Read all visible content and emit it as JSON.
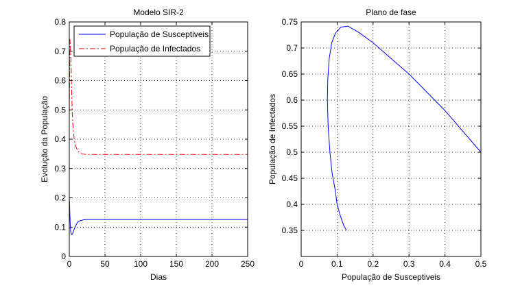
{
  "chart_data": [
    {
      "type": "line",
      "title": "Modelo SIR-2",
      "xlabel": "Dias",
      "ylabel": "Evolução da População",
      "xlim": [
        0,
        250
      ],
      "ylim": [
        0,
        0.8
      ],
      "xticks": [
        0,
        50,
        100,
        150,
        200,
        250
      ],
      "yticks": [
        0,
        0.1,
        0.2,
        0.3,
        0.4,
        0.5,
        0.6,
        0.7,
        0.8
      ],
      "grid": true,
      "legend_position": "top-left",
      "series": [
        {
          "name": "População de Susceptiveis",
          "color": "#0000ff",
          "style": "solid",
          "x": [
            0,
            0.5,
            1,
            1.5,
            2,
            3,
            4,
            5,
            6,
            8,
            10,
            12,
            15,
            20,
            25,
            30,
            50,
            100,
            150,
            200,
            250
          ],
          "y": [
            0.2,
            0.17,
            0.13,
            0.1,
            0.085,
            0.075,
            0.075,
            0.08,
            0.088,
            0.1,
            0.11,
            0.118,
            0.122,
            0.125,
            0.126,
            0.126,
            0.126,
            0.126,
            0.126,
            0.126,
            0.126
          ]
        },
        {
          "name": "População de Infectados",
          "color": "#ff0000",
          "style": "dashdot",
          "x": [
            0,
            1,
            2,
            3,
            4,
            5,
            6,
            7,
            8,
            10,
            12,
            15,
            20,
            25,
            30,
            50,
            100,
            150,
            200,
            250
          ],
          "y": [
            0.5,
            0.74,
            0.7,
            0.6,
            0.5,
            0.45,
            0.42,
            0.4,
            0.385,
            0.37,
            0.36,
            0.352,
            0.349,
            0.348,
            0.348,
            0.348,
            0.348,
            0.348,
            0.348,
            0.348
          ]
        }
      ]
    },
    {
      "type": "line",
      "title": "Plano de fase",
      "xlabel": "População de Susceptiveis",
      "ylabel": "População de Infectados",
      "xlim": [
        0,
        0.5
      ],
      "ylim": [
        0.3,
        0.75
      ],
      "xticks": [
        0,
        0.1,
        0.2,
        0.3,
        0.4,
        0.5
      ],
      "yticks": [
        0.35,
        0.4,
        0.45,
        0.5,
        0.55,
        0.6,
        0.65,
        0.7,
        0.75
      ],
      "grid": true,
      "series": [
        {
          "color": "#0000ff",
          "style": "solid",
          "x": [
            0.5,
            0.45,
            0.4,
            0.35,
            0.3,
            0.25,
            0.2,
            0.16,
            0.13,
            0.11,
            0.095,
            0.085,
            0.078,
            0.074,
            0.073,
            0.075,
            0.08,
            0.086,
            0.094,
            0.1,
            0.108,
            0.118,
            0.126
          ],
          "y": [
            0.5,
            0.54,
            0.58,
            0.615,
            0.65,
            0.68,
            0.71,
            0.73,
            0.742,
            0.74,
            0.728,
            0.71,
            0.68,
            0.64,
            0.6,
            0.55,
            0.5,
            0.46,
            0.43,
            0.4,
            0.38,
            0.36,
            0.35
          ]
        }
      ]
    }
  ]
}
